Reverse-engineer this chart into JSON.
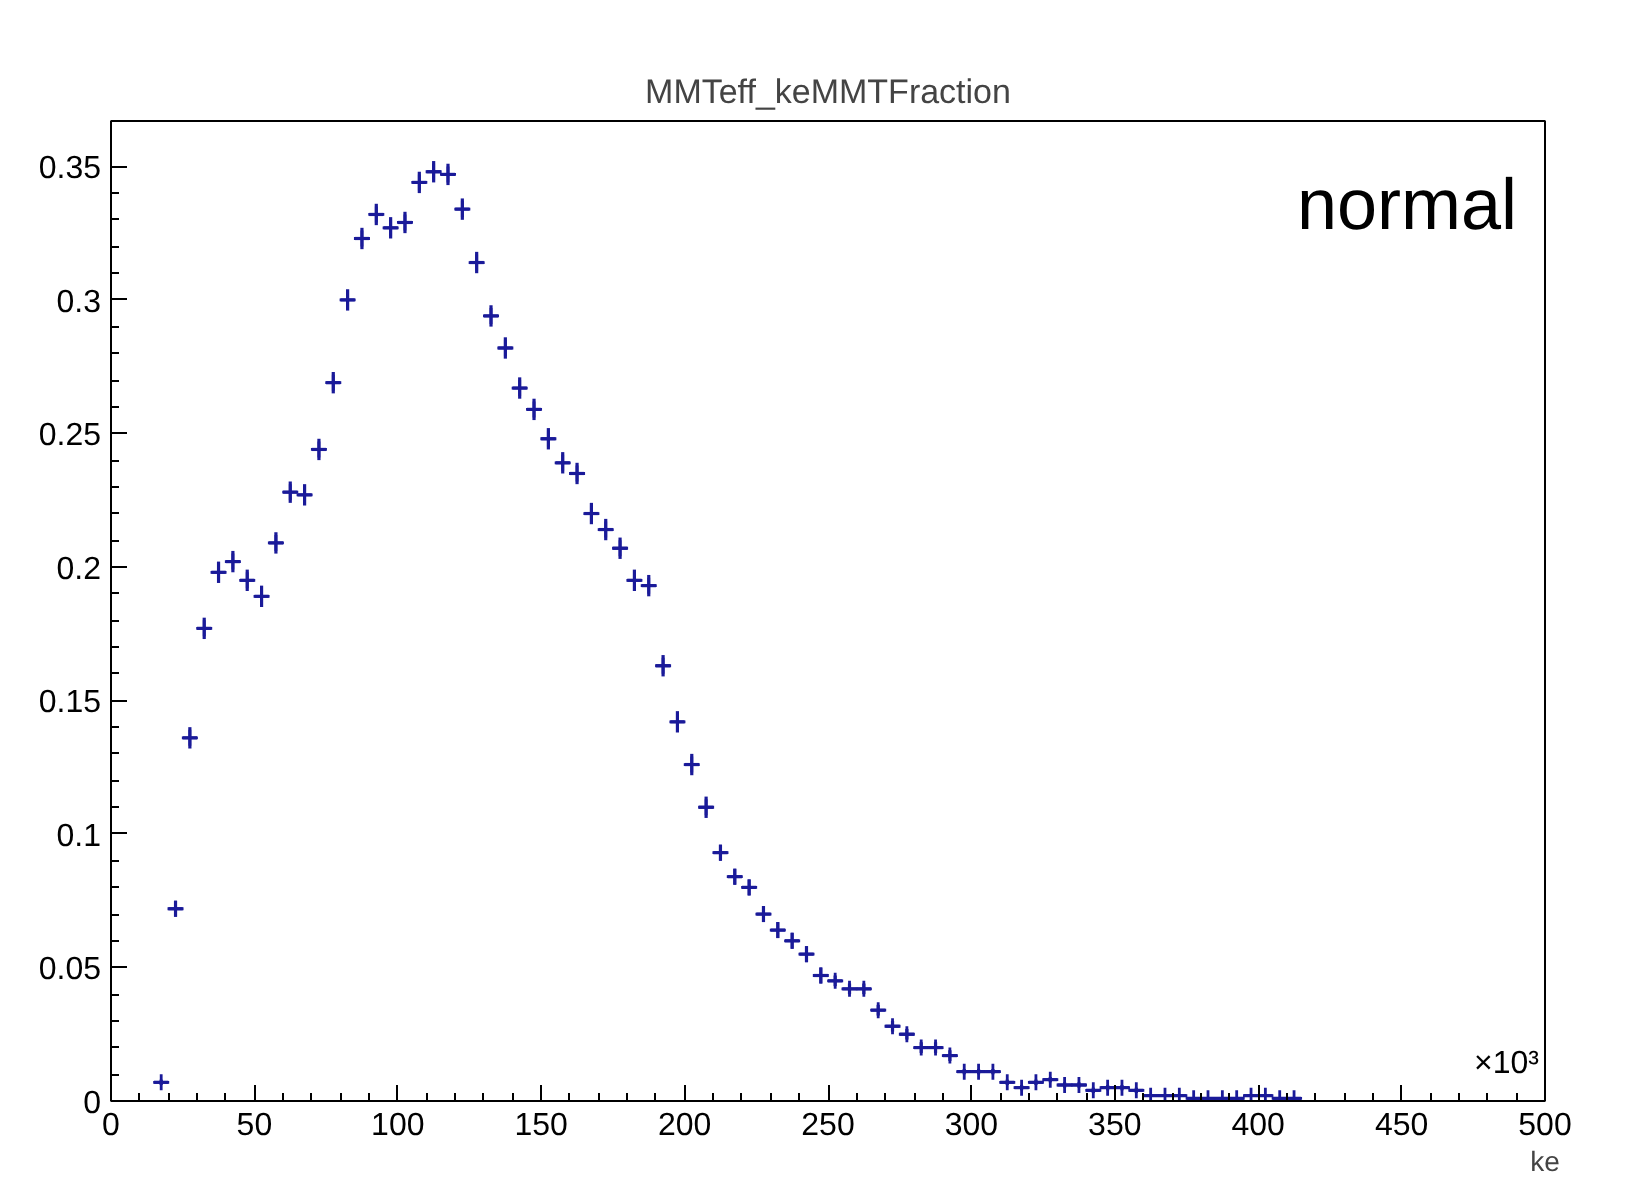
{
  "chart_data": {
    "type": "scatter",
    "title": "MMTeff_keMMTFraction",
    "xlabel": "ke",
    "annotations": [
      "normal",
      "×10³"
    ],
    "x": [
      17.5,
      22.5,
      27.5,
      32.5,
      37.5,
      42.5,
      47.5,
      52.5,
      57.5,
      62.5,
      67.5,
      72.5,
      77.5,
      82.5,
      87.5,
      92.5,
      97.5,
      102.5,
      107.5,
      112.5,
      117.5,
      122.5,
      127.5,
      132.5,
      137.5,
      142.5,
      147.5,
      152.5,
      157.5,
      162.5,
      167.5,
      172.5,
      177.5,
      182.5,
      187.5,
      192.5,
      197.5,
      202.5,
      207.5,
      212.5,
      217.5,
      222.5,
      227.5,
      232.5,
      237.5,
      242.5,
      247.5,
      252.5,
      257.5,
      262.5,
      267.5,
      272.5,
      277.5,
      282.5,
      287.5,
      292.5,
      297.5,
      302.5,
      307.5,
      312.5,
      317.5,
      322.5,
      327.5,
      332.5,
      337.5,
      342.5,
      347.5,
      352.5,
      357.5,
      362.5,
      367.5,
      372.5,
      377.5,
      382.5,
      387.5,
      392.5,
      397.5,
      402.5,
      407.5,
      412.5
    ],
    "series": [
      {
        "color": "#1a1a99",
        "values": [
          0.007,
          0.072,
          0.136,
          0.177,
          0.198,
          0.202,
          0.195,
          0.189,
          0.209,
          0.228,
          0.227,
          0.244,
          0.269,
          0.3,
          0.323,
          0.332,
          0.327,
          0.329,
          0.344,
          0.348,
          0.347,
          0.334,
          0.314,
          0.294,
          0.282,
          0.267,
          0.259,
          0.248,
          0.239,
          0.235,
          0.22,
          0.214,
          0.207,
          0.195,
          0.193,
          0.163,
          0.142,
          0.126,
          0.11,
          0.093,
          0.084,
          0.08,
          0.07,
          0.064,
          0.06,
          0.055,
          0.047,
          0.045,
          0.042,
          0.042,
          0.034,
          0.028,
          0.025,
          0.02,
          0.02,
          0.017,
          0.011,
          0.011,
          0.011,
          0.007,
          0.005,
          0.007,
          0.008,
          0.006,
          0.006,
          0.004,
          0.005,
          0.005,
          0.004,
          0.002,
          0.002,
          0.002,
          0.001,
          0.001,
          0.001,
          0.001,
          0.002,
          0.002,
          0.001,
          0.001
        ],
        "errors": [
          0.001,
          0.003,
          0.004,
          0.004,
          0.004,
          0.004,
          0.004,
          0.004,
          0.004,
          0.004,
          0.004,
          0.004,
          0.004,
          0.004,
          0.004,
          0.004,
          0.004,
          0.004,
          0.004,
          0.004,
          0.004,
          0.004,
          0.004,
          0.004,
          0.004,
          0.004,
          0.004,
          0.004,
          0.004,
          0.004,
          0.004,
          0.004,
          0.004,
          0.004,
          0.004,
          0.004,
          0.004,
          0.004,
          0.004,
          0.003,
          0.003,
          0.003,
          0.003,
          0.003,
          0.003,
          0.003,
          0.003,
          0.002,
          0.002,
          0.002,
          0.002,
          0.002,
          0.002,
          0.002,
          0.002,
          0.002,
          0.001,
          0.001,
          0.001,
          0.001,
          0.001,
          0.001,
          0.001,
          0.001,
          0.001,
          0.001,
          0.001,
          0.001,
          0.001,
          null,
          null,
          null,
          null,
          null,
          null,
          null,
          null,
          null,
          null,
          null
        ],
        "xerrors": [
          2.5,
          2.5,
          2.5,
          2.5,
          2.5,
          2.5,
          2.5,
          2.5,
          2.5,
          2.5,
          2.5,
          2.5,
          2.5,
          2.5,
          2.5,
          2.5,
          2.5,
          2.5,
          2.5,
          2.5,
          2.5,
          2.5,
          2.5,
          2.5,
          2.5,
          2.5,
          2.5,
          2.5,
          2.5,
          2.5,
          2.5,
          2.5,
          2.5,
          2.5,
          2.5,
          2.5,
          2.5,
          2.5,
          2.5,
          2.5,
          2.5,
          2.5,
          2.5,
          2.5,
          2.5,
          2.5,
          2.5,
          2.5,
          2.5,
          2.5,
          2.5,
          2.5,
          2.5,
          2.5,
          2.5,
          2.5,
          2.5,
          2.5,
          2.5,
          2.5,
          2.5,
          2.5,
          2.5,
          2.5,
          2.5,
          2.5,
          2.5,
          2.5,
          2.5,
          2.5,
          2.5,
          2.5,
          2.5,
          2.5,
          2.5,
          2.5,
          2.5,
          2.5,
          2.5,
          2.5
        ]
      }
    ],
    "marker": "cross",
    "xlim": [
      0,
      500
    ],
    "xticks": [
      0,
      50,
      100,
      150,
      200,
      250,
      300,
      350,
      400,
      450,
      500
    ],
    "ylim": [
      0,
      0.367
    ],
    "yticks": [
      0,
      0.05,
      0.1,
      0.15,
      0.2,
      0.25,
      0.3,
      0.35
    ]
  }
}
